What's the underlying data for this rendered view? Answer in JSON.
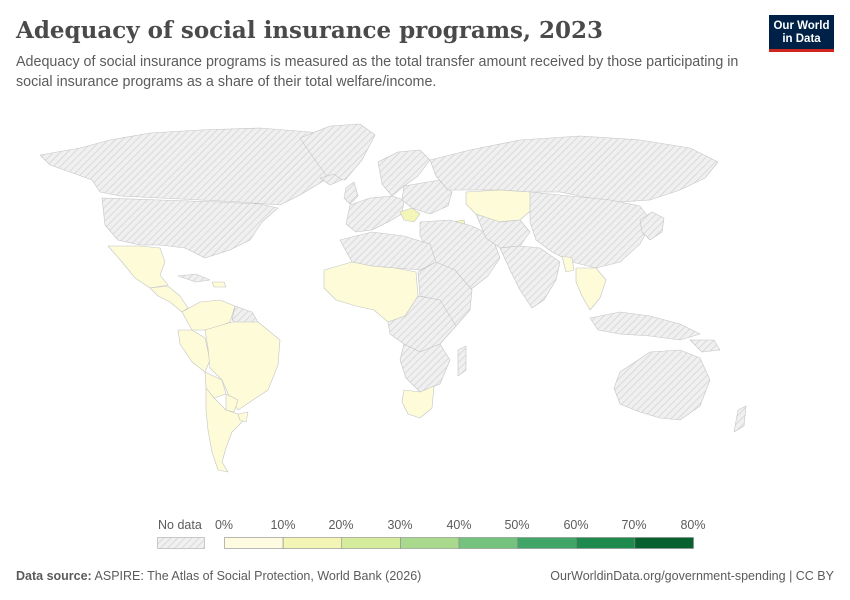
{
  "header": {
    "title": "Adequacy of social insurance programs, 2023",
    "subtitle": "Adequacy of social insurance programs is measured as the total transfer amount received by those participating in social insurance programs as a share of their total welfare/income.",
    "logo_line1": "Our World",
    "logo_line2": "in Data"
  },
  "legend": {
    "no_data_label": "No data",
    "ticks": [
      "0%",
      "10%",
      "20%",
      "30%",
      "40%",
      "50%",
      "60%",
      "70%",
      "80%"
    ],
    "bins": [
      {
        "from": 0,
        "to": 10,
        "color": "#fffbe0"
      },
      {
        "from": 10,
        "to": 20,
        "color": "#f2f5b3"
      },
      {
        "from": 20,
        "to": 30,
        "color": "#d5ec9c"
      },
      {
        "from": 30,
        "to": 40,
        "color": "#a8d98d"
      },
      {
        "from": 40,
        "to": 50,
        "color": "#73c27d"
      },
      {
        "from": 50,
        "to": 60,
        "color": "#40a566"
      },
      {
        "from": 60,
        "to": 70,
        "color": "#1f8a4e"
      },
      {
        "from": 70,
        "to": 80,
        "color": "#07612f"
      }
    ]
  },
  "colors": {
    "no_data_fill": "#efefef",
    "no_data_hatch": "#d6d6d6",
    "country_border": "#bdbdbd",
    "low_bin_fill": "#fdfbd8",
    "low_bin_fill_alt": "#f4f6b8"
  },
  "footer": {
    "source_label": "Data source:",
    "source_text": "ASPIRE: The Atlas of Social Protection, World Bank (2026)",
    "url": "OurWorldinData.org/government-spending | CC BY"
  }
}
